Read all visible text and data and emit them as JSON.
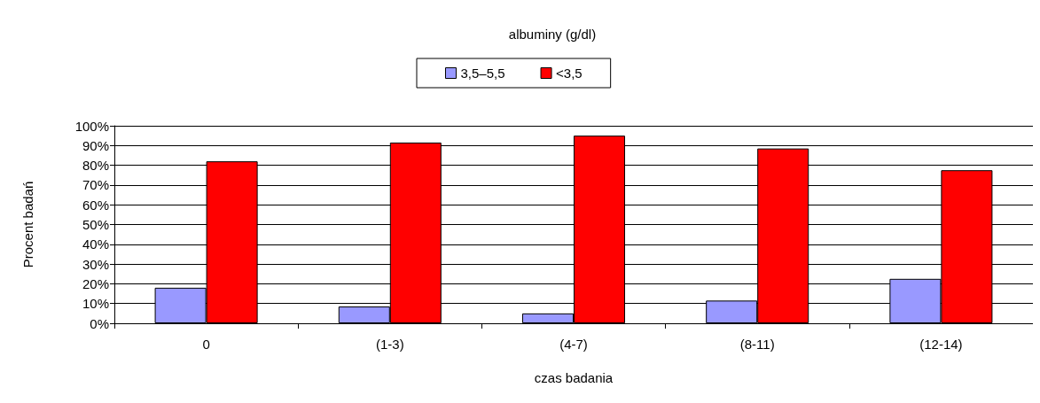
{
  "chart_data": {
    "type": "bar",
    "title": "albuminy (g/dl)",
    "xlabel": "czas badania",
    "ylabel": "Procent badań",
    "categories": [
      "0",
      "(1-3)",
      "(4-7)",
      "(8-11)",
      "(12-14)"
    ],
    "series": [
      {
        "name": "3,5–5,5",
        "color": "#9999ff",
        "values": [
          18,
          8.5,
          5,
          11.5,
          22.5
        ]
      },
      {
        "name": "<3,5",
        "color": "#ff0000",
        "values": [
          82,
          91.5,
          95,
          88.5,
          77.5
        ]
      }
    ],
    "ylim": [
      0,
      100
    ],
    "yticks": [
      {
        "value": 0,
        "label": "0%"
      },
      {
        "value": 10,
        "label": "10%"
      },
      {
        "value": 20,
        "label": "20%"
      },
      {
        "value": 30,
        "label": "30%"
      },
      {
        "value": 40,
        "label": "40%"
      },
      {
        "value": 50,
        "label": "50%"
      },
      {
        "value": 60,
        "label": "60%"
      },
      {
        "value": 70,
        "label": "70%"
      },
      {
        "value": 80,
        "label": "80%"
      },
      {
        "value": 90,
        "label": "90%"
      },
      {
        "value": 100,
        "label": "100%"
      }
    ],
    "grid": "y",
    "legend": "top"
  }
}
